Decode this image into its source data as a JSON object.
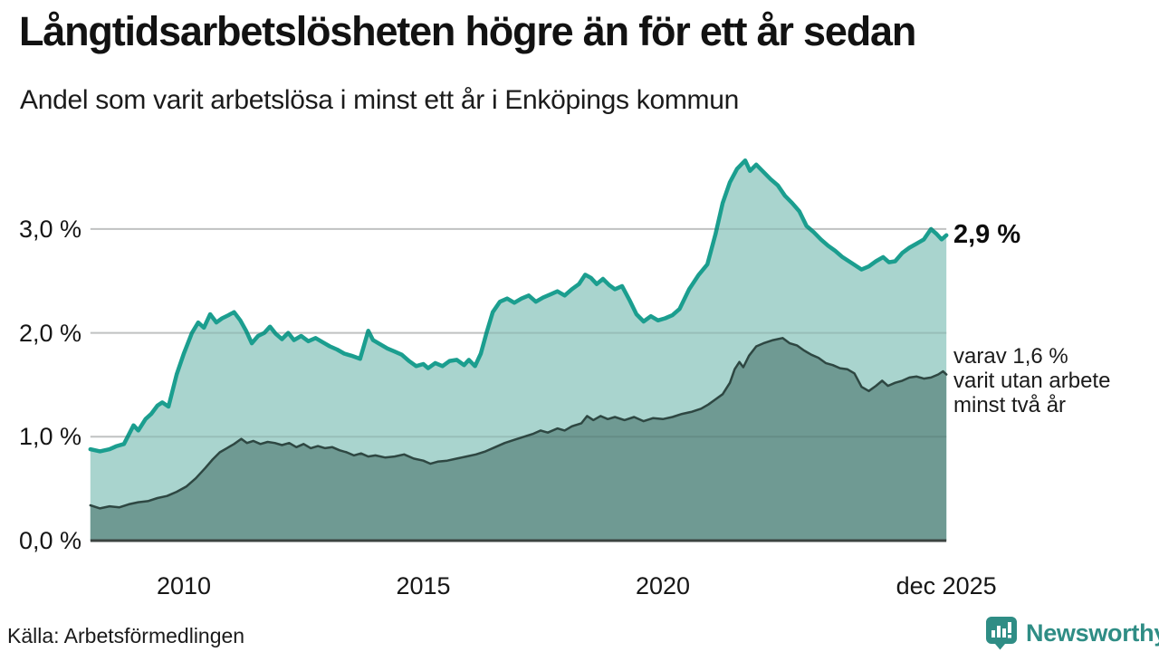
{
  "page": {
    "title": "Långtidsarbetslösheten högre än för ett år sedan",
    "subtitle": "Andel som varit arbetslösa i minst ett år i Enköpings kommun",
    "source": "Källa: Arbetsförmedlingen",
    "brand": "Newsworthy"
  },
  "colors": {
    "line_total": "#1b9e8f",
    "fill_total": "#a9d4ce",
    "line_two_years": "#2e4742",
    "fill_two_years": "#6f9a93",
    "gridline": "#d9d9d9",
    "baseline": "#3b4340",
    "brand_teal": "#2f8d85"
  },
  "chart_data": {
    "type": "area",
    "title": "Långtidsarbetslösheten högre än för ett år sedan",
    "subtitle": "Andel som varit arbetslösa i minst ett år i Enköpings kommun",
    "x_range": [
      2008.05,
      2025.92
    ],
    "y_range": [
      0,
      3.9
    ],
    "grid": true,
    "x_ticks": [
      {
        "v": 2010,
        "label": "2010"
      },
      {
        "v": 2015,
        "label": "2015"
      },
      {
        "v": 2020,
        "label": "2020"
      },
      {
        "v": 2025.92,
        "label": "dec 2025"
      }
    ],
    "y_ticks": [
      {
        "v": 0,
        "label": "0,0 %"
      },
      {
        "v": 1,
        "label": "1,0 %"
      },
      {
        "v": 2,
        "label": "2,0 %"
      },
      {
        "v": 3,
        "label": "3,0 %"
      }
    ],
    "annotations": {
      "end_label": {
        "text": "2,9 %",
        "v": 2.94
      },
      "breakdown_label": {
        "lines": [
          "varav 1,6 %",
          "varit utan arbete",
          "minst två år"
        ],
        "v": 1.6
      }
    },
    "series": [
      {
        "name": "arbetslösa minst ett år",
        "line_color": "#1b9e8f",
        "fill_color": "#a9d4ce",
        "line_width": 4.5,
        "points": [
          [
            2008.05,
            0.88
          ],
          [
            2008.25,
            0.86
          ],
          [
            2008.45,
            0.88
          ],
          [
            2008.6,
            0.91
          ],
          [
            2008.75,
            0.93
          ],
          [
            2008.95,
            1.11
          ],
          [
            2009.05,
            1.06
          ],
          [
            2009.2,
            1.17
          ],
          [
            2009.32,
            1.22
          ],
          [
            2009.45,
            1.3
          ],
          [
            2009.55,
            1.33
          ],
          [
            2009.68,
            1.29
          ],
          [
            2009.85,
            1.6
          ],
          [
            2010.0,
            1.8
          ],
          [
            2010.17,
            2.0
          ],
          [
            2010.3,
            2.1
          ],
          [
            2010.42,
            2.05
          ],
          [
            2010.55,
            2.18
          ],
          [
            2010.68,
            2.1
          ],
          [
            2010.8,
            2.14
          ],
          [
            2010.93,
            2.17
          ],
          [
            2011.05,
            2.2
          ],
          [
            2011.18,
            2.12
          ],
          [
            2011.3,
            2.02
          ],
          [
            2011.42,
            1.9
          ],
          [
            2011.55,
            1.97
          ],
          [
            2011.68,
            2.0
          ],
          [
            2011.8,
            2.06
          ],
          [
            2011.92,
            1.99
          ],
          [
            2012.05,
            1.94
          ],
          [
            2012.18,
            2.0
          ],
          [
            2012.3,
            1.93
          ],
          [
            2012.45,
            1.97
          ],
          [
            2012.6,
            1.92
          ],
          [
            2012.75,
            1.95
          ],
          [
            2012.9,
            1.91
          ],
          [
            2013.05,
            1.87
          ],
          [
            2013.2,
            1.84
          ],
          [
            2013.35,
            1.8
          ],
          [
            2013.5,
            1.78
          ],
          [
            2013.68,
            1.75
          ],
          [
            2013.85,
            2.02
          ],
          [
            2013.95,
            1.93
          ],
          [
            2014.1,
            1.89
          ],
          [
            2014.25,
            1.85
          ],
          [
            2014.4,
            1.82
          ],
          [
            2014.55,
            1.79
          ],
          [
            2014.7,
            1.73
          ],
          [
            2014.85,
            1.68
          ],
          [
            2015.0,
            1.7
          ],
          [
            2015.1,
            1.66
          ],
          [
            2015.25,
            1.71
          ],
          [
            2015.4,
            1.68
          ],
          [
            2015.55,
            1.73
          ],
          [
            2015.7,
            1.74
          ],
          [
            2015.85,
            1.69
          ],
          [
            2015.95,
            1.74
          ],
          [
            2016.08,
            1.68
          ],
          [
            2016.2,
            1.8
          ],
          [
            2016.32,
            2.0
          ],
          [
            2016.45,
            2.2
          ],
          [
            2016.6,
            2.3
          ],
          [
            2016.75,
            2.33
          ],
          [
            2016.9,
            2.29
          ],
          [
            2017.05,
            2.33
          ],
          [
            2017.2,
            2.36
          ],
          [
            2017.35,
            2.3
          ],
          [
            2017.5,
            2.34
          ],
          [
            2017.65,
            2.37
          ],
          [
            2017.8,
            2.4
          ],
          [
            2017.95,
            2.36
          ],
          [
            2018.1,
            2.42
          ],
          [
            2018.25,
            2.47
          ],
          [
            2018.38,
            2.56
          ],
          [
            2018.5,
            2.53
          ],
          [
            2018.62,
            2.47
          ],
          [
            2018.75,
            2.52
          ],
          [
            2018.88,
            2.46
          ],
          [
            2019.0,
            2.42
          ],
          [
            2019.15,
            2.45
          ],
          [
            2019.3,
            2.32
          ],
          [
            2019.45,
            2.18
          ],
          [
            2019.6,
            2.11
          ],
          [
            2019.75,
            2.16
          ],
          [
            2019.9,
            2.12
          ],
          [
            2020.05,
            2.14
          ],
          [
            2020.2,
            2.17
          ],
          [
            2020.35,
            2.23
          ],
          [
            2020.55,
            2.42
          ],
          [
            2020.75,
            2.56
          ],
          [
            2020.93,
            2.66
          ],
          [
            2021.1,
            2.95
          ],
          [
            2021.25,
            3.25
          ],
          [
            2021.4,
            3.45
          ],
          [
            2021.55,
            3.58
          ],
          [
            2021.72,
            3.66
          ],
          [
            2021.82,
            3.56
          ],
          [
            2021.95,
            3.62
          ],
          [
            2022.1,
            3.55
          ],
          [
            2022.25,
            3.48
          ],
          [
            2022.4,
            3.42
          ],
          [
            2022.55,
            3.32
          ],
          [
            2022.7,
            3.25
          ],
          [
            2022.85,
            3.17
          ],
          [
            2023.0,
            3.03
          ],
          [
            2023.15,
            2.97
          ],
          [
            2023.3,
            2.9
          ],
          [
            2023.45,
            2.84
          ],
          [
            2023.6,
            2.79
          ],
          [
            2023.75,
            2.73
          ],
          [
            2023.95,
            2.67
          ],
          [
            2024.15,
            2.61
          ],
          [
            2024.3,
            2.64
          ],
          [
            2024.45,
            2.69
          ],
          [
            2024.6,
            2.73
          ],
          [
            2024.72,
            2.68
          ],
          [
            2024.85,
            2.69
          ],
          [
            2025.0,
            2.77
          ],
          [
            2025.15,
            2.82
          ],
          [
            2025.3,
            2.86
          ],
          [
            2025.45,
            2.9
          ],
          [
            2025.6,
            3.0
          ],
          [
            2025.72,
            2.95
          ],
          [
            2025.82,
            2.9
          ],
          [
            2025.92,
            2.94
          ]
        ]
      },
      {
        "name": "varav minst två år",
        "line_color": "#2e4742",
        "fill_color": "#6f9a93",
        "line_width": 2.5,
        "points": [
          [
            2008.05,
            0.34
          ],
          [
            2008.25,
            0.31
          ],
          [
            2008.45,
            0.33
          ],
          [
            2008.65,
            0.32
          ],
          [
            2008.85,
            0.35
          ],
          [
            2009.05,
            0.37
          ],
          [
            2009.25,
            0.38
          ],
          [
            2009.45,
            0.41
          ],
          [
            2009.65,
            0.43
          ],
          [
            2009.85,
            0.47
          ],
          [
            2010.05,
            0.52
          ],
          [
            2010.25,
            0.6
          ],
          [
            2010.45,
            0.7
          ],
          [
            2010.6,
            0.78
          ],
          [
            2010.75,
            0.85
          ],
          [
            2010.9,
            0.89
          ],
          [
            2011.05,
            0.93
          ],
          [
            2011.2,
            0.98
          ],
          [
            2011.32,
            0.94
          ],
          [
            2011.45,
            0.96
          ],
          [
            2011.6,
            0.93
          ],
          [
            2011.75,
            0.95
          ],
          [
            2011.9,
            0.94
          ],
          [
            2012.05,
            0.92
          ],
          [
            2012.2,
            0.94
          ],
          [
            2012.35,
            0.9
          ],
          [
            2012.5,
            0.93
          ],
          [
            2012.65,
            0.89
          ],
          [
            2012.8,
            0.91
          ],
          [
            2012.95,
            0.89
          ],
          [
            2013.1,
            0.9
          ],
          [
            2013.25,
            0.87
          ],
          [
            2013.4,
            0.85
          ],
          [
            2013.55,
            0.82
          ],
          [
            2013.7,
            0.84
          ],
          [
            2013.85,
            0.81
          ],
          [
            2014.0,
            0.82
          ],
          [
            2014.2,
            0.8
          ],
          [
            2014.4,
            0.81
          ],
          [
            2014.6,
            0.83
          ],
          [
            2014.8,
            0.79
          ],
          [
            2015.0,
            0.77
          ],
          [
            2015.15,
            0.74
          ],
          [
            2015.3,
            0.76
          ],
          [
            2015.5,
            0.77
          ],
          [
            2015.7,
            0.79
          ],
          [
            2015.9,
            0.81
          ],
          [
            2016.1,
            0.83
          ],
          [
            2016.3,
            0.86
          ],
          [
            2016.5,
            0.9
          ],
          [
            2016.7,
            0.94
          ],
          [
            2016.9,
            0.97
          ],
          [
            2017.1,
            1.0
          ],
          [
            2017.3,
            1.03
          ],
          [
            2017.45,
            1.06
          ],
          [
            2017.6,
            1.04
          ],
          [
            2017.8,
            1.08
          ],
          [
            2017.95,
            1.06
          ],
          [
            2018.1,
            1.1
          ],
          [
            2018.3,
            1.13
          ],
          [
            2018.42,
            1.2
          ],
          [
            2018.55,
            1.16
          ],
          [
            2018.7,
            1.2
          ],
          [
            2018.85,
            1.17
          ],
          [
            2019.0,
            1.19
          ],
          [
            2019.2,
            1.16
          ],
          [
            2019.4,
            1.19
          ],
          [
            2019.6,
            1.15
          ],
          [
            2019.8,
            1.18
          ],
          [
            2020.0,
            1.17
          ],
          [
            2020.2,
            1.19
          ],
          [
            2020.4,
            1.22
          ],
          [
            2020.6,
            1.24
          ],
          [
            2020.8,
            1.27
          ],
          [
            2020.95,
            1.31
          ],
          [
            2021.1,
            1.36
          ],
          [
            2021.25,
            1.41
          ],
          [
            2021.4,
            1.52
          ],
          [
            2021.5,
            1.65
          ],
          [
            2021.6,
            1.72
          ],
          [
            2021.68,
            1.67
          ],
          [
            2021.8,
            1.78
          ],
          [
            2021.95,
            1.87
          ],
          [
            2022.1,
            1.9
          ],
          [
            2022.3,
            1.93
          ],
          [
            2022.5,
            1.95
          ],
          [
            2022.65,
            1.9
          ],
          [
            2022.8,
            1.88
          ],
          [
            2022.95,
            1.83
          ],
          [
            2023.1,
            1.79
          ],
          [
            2023.25,
            1.76
          ],
          [
            2023.4,
            1.71
          ],
          [
            2023.55,
            1.69
          ],
          [
            2023.7,
            1.66
          ],
          [
            2023.85,
            1.65
          ],
          [
            2024.0,
            1.61
          ],
          [
            2024.15,
            1.48
          ],
          [
            2024.3,
            1.44
          ],
          [
            2024.45,
            1.49
          ],
          [
            2024.58,
            1.54
          ],
          [
            2024.7,
            1.49
          ],
          [
            2024.85,
            1.52
          ],
          [
            2025.0,
            1.54
          ],
          [
            2025.15,
            1.57
          ],
          [
            2025.3,
            1.58
          ],
          [
            2025.45,
            1.56
          ],
          [
            2025.6,
            1.57
          ],
          [
            2025.75,
            1.6
          ],
          [
            2025.85,
            1.63
          ],
          [
            2025.92,
            1.6
          ]
        ]
      }
    ]
  }
}
